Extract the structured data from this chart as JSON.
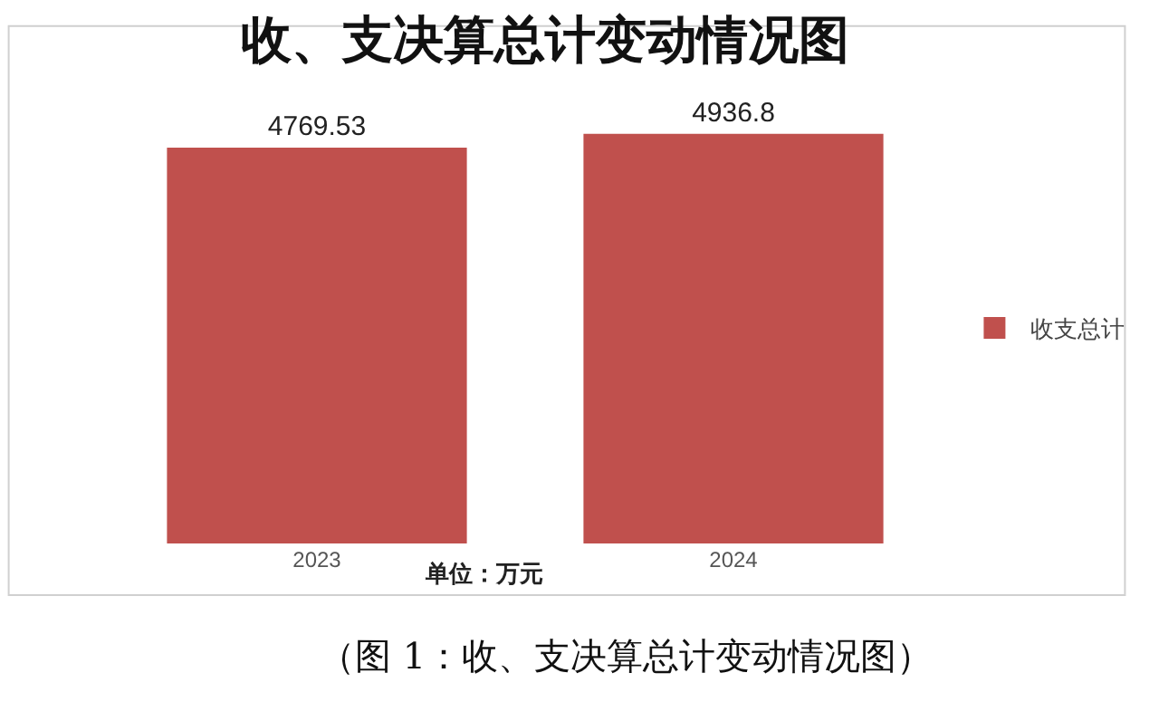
{
  "chart_data": {
    "type": "bar",
    "title": "收、支决算总计变动情况图",
    "categories": [
      "2023",
      "2024"
    ],
    "series": [
      {
        "name": "收支总计",
        "color": "#c0504d",
        "values": [
          4769.53,
          4936.8
        ]
      }
    ],
    "xlabel": "单位：万元",
    "tick_labels": "x",
    "data_labels": true,
    "grid": false,
    "legend": "right",
    "annotations": [
      "（图 1：收、支决算总计变动情况图）"
    ]
  }
}
